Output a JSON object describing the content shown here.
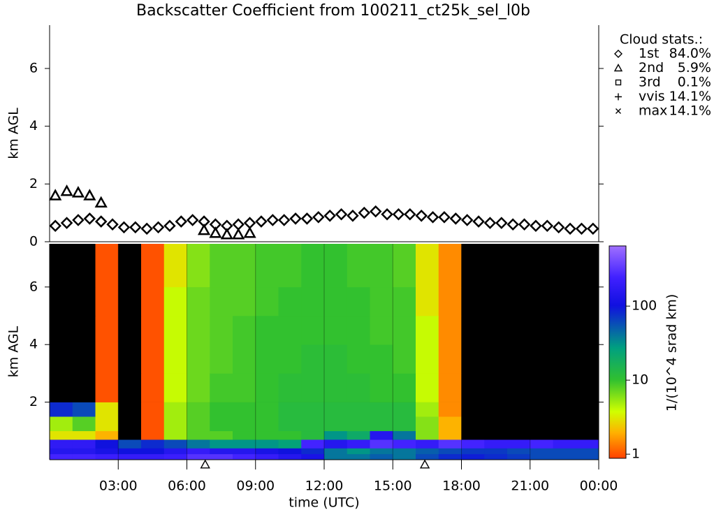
{
  "chart_data": [
    {
      "type": "scatter",
      "title": "Backscatter Coefficient from 100211_ct25k_sel_l0b",
      "y_label": "km AGL",
      "xlim": [
        0,
        24
      ],
      "ylim": [
        0,
        7.5
      ],
      "yticks": [
        0,
        2,
        4,
        6
      ],
      "series": [
        {
          "name": "1st",
          "marker": "diamond",
          "color": "#000000",
          "x": [
            0.25,
            0.75,
            1.25,
            1.75,
            2.25,
            2.75,
            3.25,
            3.75,
            4.25,
            4.75,
            5.25,
            5.75,
            6.25,
            6.75,
            7.25,
            7.75,
            8.25,
            8.75,
            9.25,
            9.75,
            10.25,
            10.75,
            11.25,
            11.75,
            12.25,
            12.75,
            13.25,
            13.75,
            14.25,
            14.75,
            15.25,
            15.75,
            16.25,
            16.75,
            17.25,
            17.75,
            18.25,
            18.75,
            19.25,
            19.75,
            20.25,
            20.75,
            21.25,
            21.75,
            22.25,
            22.75,
            23.25,
            23.75
          ],
          "values": [
            0.55,
            0.65,
            0.75,
            0.8,
            0.7,
            0.6,
            0.5,
            0.5,
            0.45,
            0.5,
            0.55,
            0.7,
            0.75,
            0.7,
            0.6,
            0.55,
            0.6,
            0.65,
            0.7,
            0.75,
            0.75,
            0.8,
            0.8,
            0.85,
            0.9,
            0.95,
            0.9,
            1.0,
            1.05,
            0.95,
            0.95,
            0.95,
            0.9,
            0.85,
            0.85,
            0.8,
            0.75,
            0.7,
            0.65,
            0.65,
            0.6,
            0.6,
            0.55,
            0.55,
            0.5,
            0.45,
            0.45,
            0.45
          ]
        },
        {
          "name": "2nd",
          "marker": "triangle",
          "color": "#000000",
          "x": [
            0.25,
            0.75,
            1.25,
            1.75,
            2.25,
            6.75,
            7.25,
            7.75,
            8.25,
            8.75
          ],
          "values": [
            1.6,
            1.75,
            1.7,
            1.6,
            1.35,
            0.4,
            0.3,
            0.25,
            0.25,
            0.3
          ]
        }
      ],
      "cloud_stats": {
        "title": "Cloud stats.:",
        "entries": [
          {
            "marker": "diamond",
            "name": "1st",
            "percent": "84.0%"
          },
          {
            "marker": "triangle",
            "name": "2nd",
            "percent": "5.9%"
          },
          {
            "marker": "square",
            "name": "3rd",
            "percent": "0.1%"
          },
          {
            "marker": "plus",
            "name": "vvis",
            "percent": "14.1%"
          },
          {
            "marker": "cross",
            "name": "max",
            "percent": "14.1%"
          }
        ]
      }
    },
    {
      "type": "heatmap",
      "y_label": "km AGL",
      "x_label": "time (UTC)",
      "xlim": [
        0,
        24
      ],
      "xticks": [
        {
          "value": 3,
          "label": "03:00"
        },
        {
          "value": 6,
          "label": "06:00"
        },
        {
          "value": 9,
          "label": "09:00"
        },
        {
          "value": 12,
          "label": "12:00"
        },
        {
          "value": 15,
          "label": "15:00"
        },
        {
          "value": 18,
          "label": "18:00"
        },
        {
          "value": 21,
          "label": "21:00"
        },
        {
          "value": 24,
          "label": "00:00"
        }
      ],
      "ylim": [
        0,
        7.5
      ],
      "yticks": [
        2,
        4,
        6
      ],
      "x_edges": [
        0,
        1,
        2,
        3,
        4,
        5,
        6,
        7,
        8,
        9,
        10,
        11,
        12,
        13,
        14,
        15,
        16,
        17,
        18,
        19,
        20,
        21,
        22,
        23,
        24
      ],
      "y_edges": [
        0,
        0.2,
        0.4,
        0.7,
        1,
        1.5,
        2,
        3,
        4,
        5,
        6,
        7.5
      ],
      "values": [
        [
          250,
          250,
          220,
          200,
          200,
          220,
          300,
          300,
          250,
          200,
          150,
          120,
          40,
          40,
          50,
          40,
          60,
          80,
          90,
          80,
          70,
          60,
          60,
          60
        ],
        [
          150,
          150,
          120,
          100,
          100,
          150,
          200,
          150,
          150,
          120,
          100,
          80,
          40,
          30,
          40,
          40,
          50,
          60,
          70,
          70,
          60,
          60,
          60,
          60
        ],
        [
          180,
          180,
          100,
          60,
          80,
          60,
          40,
          30,
          30,
          30,
          25,
          250,
          150,
          200,
          300,
          250,
          200,
          300,
          250,
          200,
          200,
          250,
          200,
          200
        ],
        [
          3,
          3,
          2,
          0.5,
          1,
          5,
          8,
          8,
          10,
          10,
          10,
          12,
          30,
          20,
          150,
          40,
          6,
          2,
          0.5,
          0.5,
          0.5,
          0.5,
          0.5,
          0.5
        ],
        [
          5,
          8,
          3,
          0.5,
          1,
          5,
          8,
          10,
          10,
          10,
          12,
          12,
          12,
          12,
          12,
          12,
          6,
          2,
          0.5,
          0.5,
          0.5,
          0.5,
          0.5,
          0.5
        ],
        [
          80,
          60,
          3,
          0.5,
          1,
          5,
          8,
          10,
          10,
          10,
          12,
          12,
          12,
          12,
          12,
          12,
          5,
          1.5,
          0.5,
          0.5,
          0.5,
          0.5,
          0.5,
          0.5
        ],
        [
          0.5,
          0.5,
          1,
          0.5,
          1,
          4,
          7,
          9,
          9,
          10,
          11,
          11,
          11,
          11,
          10,
          10,
          4,
          1.5,
          0.5,
          0.5,
          0.5,
          0.5,
          0.5,
          0.5
        ],
        [
          0.5,
          0.5,
          1,
          0.5,
          1,
          4,
          7,
          8,
          9,
          10,
          10,
          11,
          11,
          10,
          10,
          9,
          4,
          1.5,
          0.5,
          0.5,
          0.5,
          0.5,
          0.5,
          0.5
        ],
        [
          0.5,
          0.5,
          1,
          0.5,
          1,
          4,
          7,
          8,
          9,
          10,
          10,
          10,
          10,
          10,
          9,
          9,
          4,
          1.5,
          0.5,
          0.5,
          0.5,
          0.5,
          0.5,
          0.5
        ],
        [
          0.5,
          0.5,
          1,
          0.5,
          1,
          4,
          7,
          8,
          8,
          9,
          10,
          10,
          10,
          10,
          9,
          9,
          3,
          1.5,
          0.5,
          0.5,
          0.5,
          0.5,
          0.5,
          0.5
        ],
        [
          0.5,
          0.5,
          1,
          0.5,
          1,
          3,
          6,
          8,
          8,
          9,
          9,
          10,
          10,
          9,
          9,
          8,
          3,
          1.5,
          0.5,
          0.5,
          0.5,
          0.5,
          0.5,
          0.5
        ]
      ],
      "markers_x": [
        6.8,
        16.4
      ],
      "colorbar": {
        "label": "1/(10^4 srad km)",
        "log": true,
        "clim": [
          0.88,
          650
        ],
        "ticks": [
          1,
          10,
          100
        ],
        "colormap": [
          [
            0,
            "#ff4000"
          ],
          [
            0.12,
            "#ffb000"
          ],
          [
            0.22,
            "#d0ff00"
          ],
          [
            0.37,
            "#30c030"
          ],
          [
            0.52,
            "#00a080"
          ],
          [
            0.72,
            "#1010e0"
          ],
          [
            0.85,
            "#4020ff"
          ],
          [
            1,
            "#a070ff"
          ]
        ]
      }
    }
  ]
}
